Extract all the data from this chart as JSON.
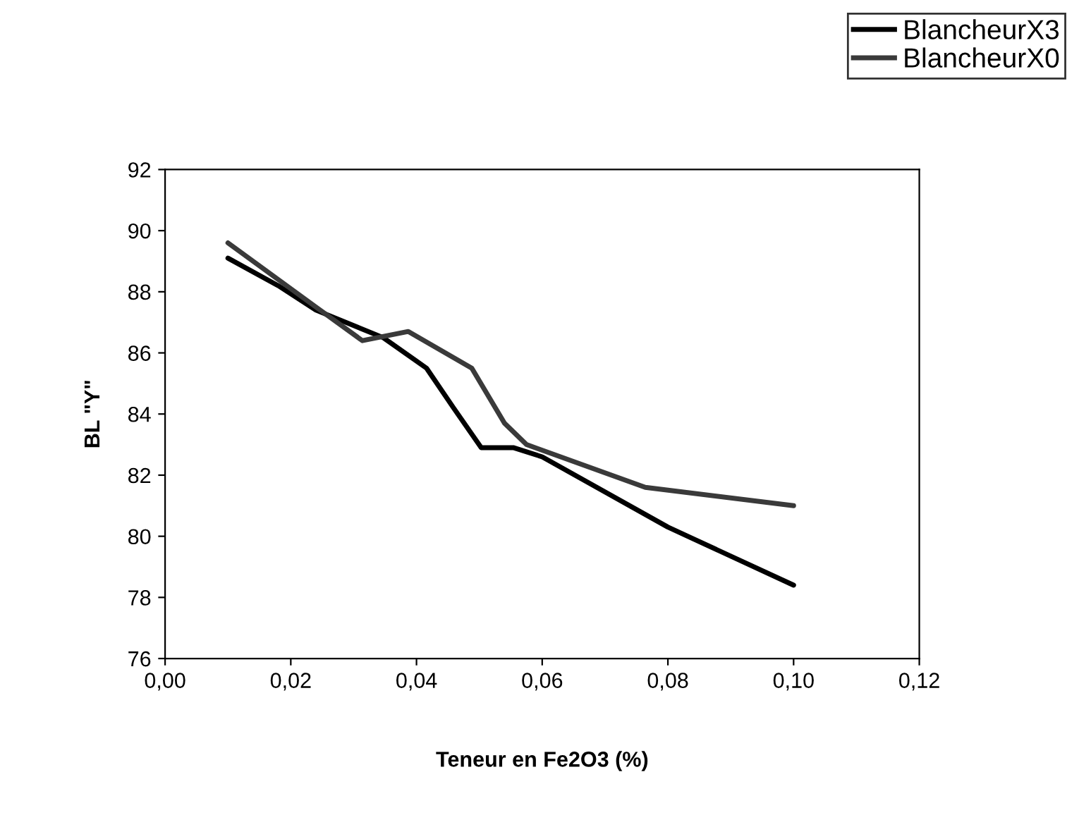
{
  "chart_data": {
    "type": "line",
    "xlabel": "Teneur en Fe2O3 (%)",
    "ylabel": "BL \"Y\"",
    "xlim": [
      0,
      0.12
    ],
    "xticks": [
      {
        "value": 0,
        "label": "0,00"
      },
      {
        "value": 0.02,
        "label": "0,02"
      },
      {
        "value": 0.04,
        "label": "0,04"
      },
      {
        "value": 0.06,
        "label": "0,06"
      },
      {
        "value": 0.08,
        "label": "0,08"
      },
      {
        "value": 0.1,
        "label": "0,10"
      },
      {
        "value": 0.12,
        "label": "0,12"
      }
    ],
    "ylim": [
      76,
      92
    ],
    "yticks": [
      76,
      78,
      80,
      82,
      84,
      86,
      88,
      90,
      92
    ],
    "grid": false,
    "legend": "top right",
    "marker": "none",
    "line_style": "solid",
    "series": [
      {
        "name": "BlancheurX3",
        "color": "#000000",
        "x": [
          0.01,
          0.018,
          0.024,
          0.0347,
          0.0416,
          0.0459,
          0.0503,
          0.0554,
          0.06,
          0.08,
          0.1
        ],
        "values": [
          89.1,
          88.2,
          87.4,
          86.5,
          85.5,
          84.2,
          82.9,
          82.9,
          82.6,
          80.3,
          78.4
        ]
      },
      {
        "name": "BlancheurX0",
        "color": "#3a3a3a",
        "x": [
          0.01,
          0.018,
          0.024,
          0.0314,
          0.0387,
          0.0488,
          0.054,
          0.0575,
          0.0764,
          0.1
        ],
        "values": [
          89.6,
          88.4,
          87.5,
          86.4,
          86.7,
          85.5,
          83.7,
          83.0,
          81.6,
          81.0
        ]
      }
    ]
  }
}
